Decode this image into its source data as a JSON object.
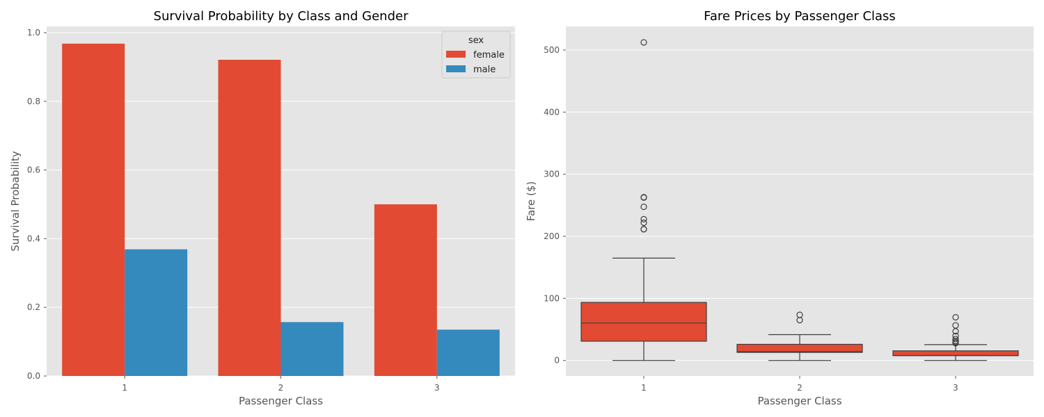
{
  "chart_data": [
    {
      "type": "bar",
      "title": "Survival Probability by Class and Gender",
      "xlabel": "Passenger Class",
      "ylabel": "Survival Probability",
      "categories": [
        "1",
        "2",
        "3"
      ],
      "ylim": [
        0,
        1.0
      ],
      "yticks": [
        "0.0",
        "0.2",
        "0.4",
        "0.6",
        "0.8",
        "1.0"
      ],
      "grid": true,
      "legend": {
        "title": "sex",
        "placement": "top-right"
      },
      "series": [
        {
          "name": "female",
          "values": [
            0.968,
            0.921,
            0.5
          ],
          "color": "#E24A33"
        },
        {
          "name": "male",
          "values": [
            0.369,
            0.157,
            0.135
          ],
          "color": "#348ABD"
        }
      ]
    },
    {
      "type": "box",
      "title": "Fare Prices by Passenger Class",
      "xlabel": "Passenger Class",
      "ylabel": "Fare ($)",
      "categories": [
        "1",
        "2",
        "3"
      ],
      "ylim": [
        -25,
        538
      ],
      "yticks": [
        "0",
        "100",
        "200",
        "300",
        "400",
        "500"
      ],
      "grid": true,
      "color": "#E24A33",
      "boxes": [
        {
          "whisker_low": 0,
          "q1": 31,
          "median": 60.3,
          "q3": 93.5,
          "whisker_high": 164.9,
          "outliers": [
            211.3,
            211.5,
            221.8,
            227.5,
            247.5,
            262.4,
            263,
            512.3
          ]
        },
        {
          "whisker_low": 0,
          "q1": 13,
          "median": 14.25,
          "q3": 26,
          "whisker_high": 41.6,
          "outliers": [
            65,
            73.5
          ]
        },
        {
          "whisker_low": 0,
          "q1": 7.75,
          "median": 8.05,
          "q3": 15.5,
          "whisker_high": 25.5,
          "outliers": [
            27.9,
            29.1,
            31.3,
            31.4,
            34.4,
            39.7,
            46.9,
            56.5,
            69.55
          ]
        }
      ]
    }
  ]
}
